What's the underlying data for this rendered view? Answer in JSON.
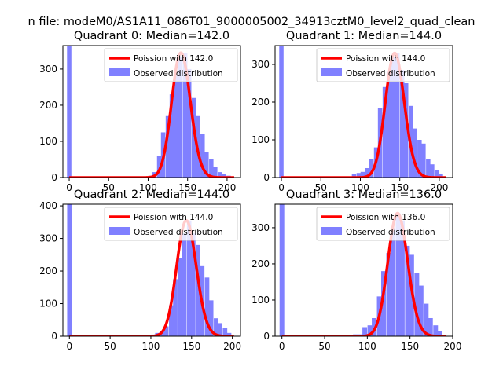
{
  "figure": {
    "suptitle": "n file: modeM0/AS1A11_086T01_9000005002_34913cztM0_level2_quad_clean"
  },
  "colors": {
    "observed_fill": "#8080ff",
    "poisson_line": "#ff0000",
    "axes": "#000000",
    "background": "#ffffff"
  },
  "legend": {
    "observed_label": "Observed distribution"
  },
  "chart_data": [
    {
      "type": "bar+line",
      "title": "Quadrant 0: Median=142.0",
      "median": 142.0,
      "poisson_label": "Poission with 142.0",
      "xlim": [
        -8,
        217
      ],
      "ylim": [
        0,
        365
      ],
      "xticks": [
        0,
        50,
        100,
        150,
        200
      ],
      "yticks": [
        0,
        100,
        200,
        300
      ],
      "bin_width": 5.5,
      "bins": [
        {
          "x": 0,
          "y": 365
        },
        {
          "x": 80,
          "y": 2
        },
        {
          "x": 86,
          "y": 2
        },
        {
          "x": 92,
          "y": 3
        },
        {
          "x": 97,
          "y": 2
        },
        {
          "x": 103,
          "y": 5
        },
        {
          "x": 108,
          "y": 15
        },
        {
          "x": 114,
          "y": 60
        },
        {
          "x": 119,
          "y": 125
        },
        {
          "x": 125,
          "y": 170
        },
        {
          "x": 130,
          "y": 230
        },
        {
          "x": 136,
          "y": 285
        },
        {
          "x": 141,
          "y": 335
        },
        {
          "x": 147,
          "y": 345
        },
        {
          "x": 152,
          "y": 300
        },
        {
          "x": 158,
          "y": 220
        },
        {
          "x": 163,
          "y": 170
        },
        {
          "x": 169,
          "y": 120
        },
        {
          "x": 174,
          "y": 70
        },
        {
          "x": 180,
          "y": 50
        },
        {
          "x": 185,
          "y": 30
        },
        {
          "x": 191,
          "y": 15
        },
        {
          "x": 196,
          "y": 10
        },
        {
          "x": 202,
          "y": 5
        }
      ]
    },
    {
      "type": "bar+line",
      "title": "Quadrant 1: Median=144.0",
      "median": 144.0,
      "poisson_label": "Poission with 144.0",
      "xlim": [
        -8,
        217
      ],
      "ylim": [
        0,
        350
      ],
      "xticks": [
        0,
        50,
        100,
        150,
        200
      ],
      "yticks": [
        0,
        100,
        200,
        300
      ],
      "bin_width": 5.5,
      "bins": [
        {
          "x": 0,
          "y": 350
        },
        {
          "x": 81,
          "y": 2
        },
        {
          "x": 87,
          "y": 2
        },
        {
          "x": 92,
          "y": 10
        },
        {
          "x": 98,
          "y": 12
        },
        {
          "x": 103,
          "y": 15
        },
        {
          "x": 109,
          "y": 25
        },
        {
          "x": 114,
          "y": 50
        },
        {
          "x": 120,
          "y": 80
        },
        {
          "x": 125,
          "y": 185
        },
        {
          "x": 131,
          "y": 240
        },
        {
          "x": 136,
          "y": 280
        },
        {
          "x": 142,
          "y": 320
        },
        {
          "x": 147,
          "y": 330
        },
        {
          "x": 153,
          "y": 285
        },
        {
          "x": 158,
          "y": 250
        },
        {
          "x": 164,
          "y": 190
        },
        {
          "x": 169,
          "y": 130
        },
        {
          "x": 175,
          "y": 100
        },
        {
          "x": 180,
          "y": 90
        },
        {
          "x": 186,
          "y": 50
        },
        {
          "x": 191,
          "y": 35
        },
        {
          "x": 197,
          "y": 20
        },
        {
          "x": 202,
          "y": 10
        }
      ]
    },
    {
      "type": "bar+line",
      "title": "Quadrant 2: Median=144.0",
      "median": 144.0,
      "poisson_label": "Poission with 144.0",
      "xlim": [
        -8,
        210
      ],
      "ylim": [
        0,
        405
      ],
      "xticks": [
        0,
        50,
        100,
        150,
        200
      ],
      "yticks": [
        0,
        100,
        200,
        300,
        400
      ],
      "bin_width": 5.5,
      "bins": [
        {
          "x": 0,
          "y": 405
        },
        {
          "x": 27,
          "y": 3
        },
        {
          "x": 54,
          "y": 2
        },
        {
          "x": 81,
          "y": 3
        },
        {
          "x": 86,
          "y": 3
        },
        {
          "x": 92,
          "y": 3
        },
        {
          "x": 97,
          "y": 3
        },
        {
          "x": 103,
          "y": 5
        },
        {
          "x": 108,
          "y": 10
        },
        {
          "x": 114,
          "y": 15
        },
        {
          "x": 119,
          "y": 30
        },
        {
          "x": 125,
          "y": 95
        },
        {
          "x": 130,
          "y": 175
        },
        {
          "x": 136,
          "y": 240
        },
        {
          "x": 141,
          "y": 315
        },
        {
          "x": 147,
          "y": 355
        },
        {
          "x": 152,
          "y": 315
        },
        {
          "x": 158,
          "y": 280
        },
        {
          "x": 163,
          "y": 215
        },
        {
          "x": 169,
          "y": 180
        },
        {
          "x": 174,
          "y": 110
        },
        {
          "x": 180,
          "y": 55
        },
        {
          "x": 185,
          "y": 40
        },
        {
          "x": 191,
          "y": 25
        },
        {
          "x": 196,
          "y": 10
        }
      ]
    },
    {
      "type": "bar+line",
      "title": "Quadrant 3: Median=136.0",
      "median": 136.0,
      "poisson_label": "Poission with 136.0",
      "xlim": [
        -8,
        200
      ],
      "ylim": [
        0,
        365
      ],
      "xticks": [
        0,
        50,
        100,
        150,
        200
      ],
      "yticks": [
        0,
        100,
        200,
        300
      ],
      "bin_width": 5.5,
      "bins": [
        {
          "x": 0,
          "y": 365
        },
        {
          "x": 75,
          "y": 2
        },
        {
          "x": 81,
          "y": 3
        },
        {
          "x": 86,
          "y": 5
        },
        {
          "x": 92,
          "y": 5
        },
        {
          "x": 97,
          "y": 25
        },
        {
          "x": 103,
          "y": 30
        },
        {
          "x": 108,
          "y": 50
        },
        {
          "x": 114,
          "y": 110
        },
        {
          "x": 119,
          "y": 180
        },
        {
          "x": 125,
          "y": 230
        },
        {
          "x": 130,
          "y": 300
        },
        {
          "x": 136,
          "y": 340
        },
        {
          "x": 141,
          "y": 320
        },
        {
          "x": 147,
          "y": 250
        },
        {
          "x": 152,
          "y": 225
        },
        {
          "x": 158,
          "y": 175
        },
        {
          "x": 163,
          "y": 140
        },
        {
          "x": 169,
          "y": 90
        },
        {
          "x": 174,
          "y": 50
        },
        {
          "x": 180,
          "y": 30
        },
        {
          "x": 185,
          "y": 15
        }
      ]
    }
  ]
}
